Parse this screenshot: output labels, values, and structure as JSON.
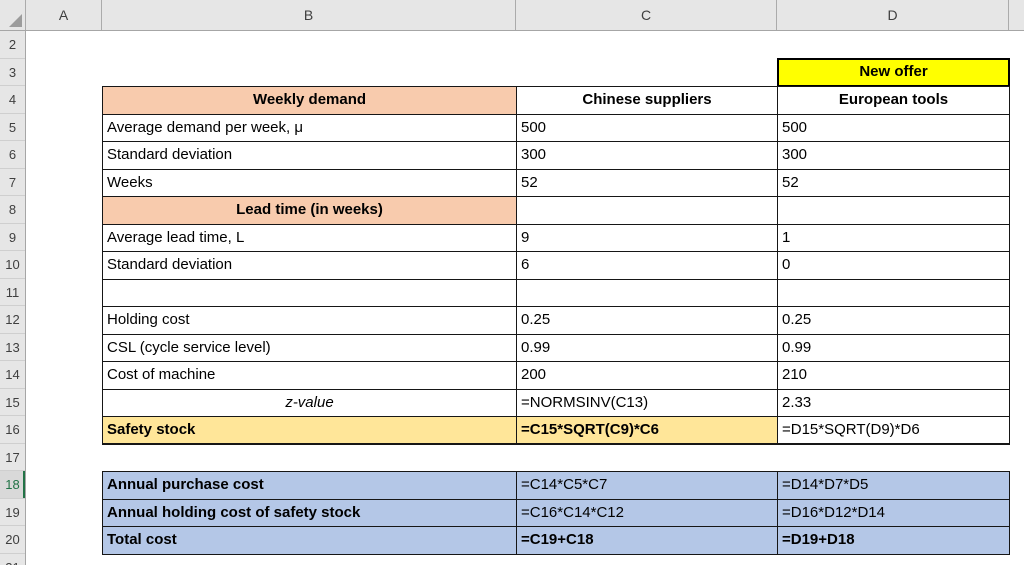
{
  "app": {
    "type": "spreadsheet-grid"
  },
  "colors": {
    "header_bg": "#E6E6E6",
    "peach_fill": "#F8CBAD",
    "yellow_fill": "#FFFF00",
    "gold_fill": "#FFE699",
    "blue_fill": "#B4C7E7",
    "active_green": "#217346"
  },
  "column_headers": [
    "A",
    "B",
    "C",
    "D"
  ],
  "row_headers": [
    "2",
    "3",
    "4",
    "5",
    "6",
    "7",
    "8",
    "9",
    "10",
    "11",
    "12",
    "13",
    "14",
    "15",
    "16",
    "17",
    "18",
    "19",
    "20",
    "21"
  ],
  "active_row": "18",
  "cells": {
    "d3": "New offer",
    "b4": "Weekly demand",
    "c4": "Chinese suppliers",
    "d4": "European tools",
    "b5": "Average demand per week, μ",
    "c5": "500",
    "d5": "500",
    "b6": "Standard deviation",
    "c6": "300",
    "d6": "300",
    "b7": "Weeks",
    "c7": "52",
    "d7": "52",
    "b8": "Lead time (in weeks)",
    "c8": "",
    "d8": "",
    "b9": "Average lead time, L",
    "c9": "9",
    "d9": "1",
    "b10": "Standard deviation",
    "c10": "6",
    "d10": "0",
    "b11": "",
    "c11": "",
    "d11": "",
    "b12": "Holding cost",
    "c12": "0.25",
    "d12": "0.25",
    "b13": "CSL (cycle service level)",
    "c13": "0.99",
    "d13": "0.99",
    "b14": "Cost of machine",
    "c14": "200",
    "d14": "210",
    "b15": "z-value",
    "c15": "=NORMSINV(C13)",
    "d15": "2.33",
    "b16": "Safety stock",
    "c16": "=C15*SQRT(C9)*C6",
    "d16": "=D15*SQRT(D9)*D6",
    "b18": "Annual purchase cost",
    "c18": "=C14*C5*C7",
    "d18": "=D14*D7*D5",
    "b19": "Annual holding cost of safety stock",
    "c19": "=C16*C14*C12",
    "d19": "=D16*D12*D14",
    "b20": "Total cost",
    "c20": "=C19+C18",
    "d20": "=D19+D18"
  }
}
